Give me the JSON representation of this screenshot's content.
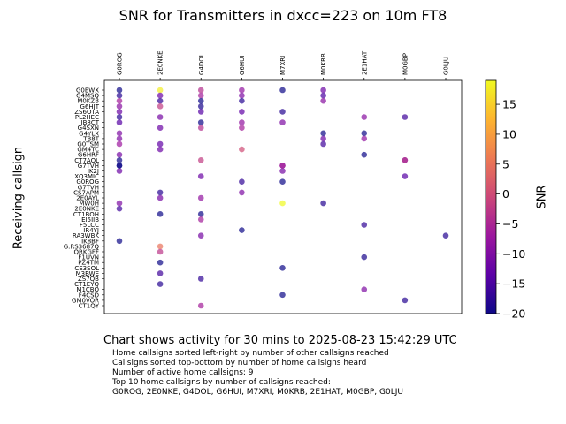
{
  "chart_data": {
    "type": "scatter",
    "title": "SNR for Transmitters in dxcc=223 on 10m FT8",
    "ylabel": "Receiving callsign",
    "colorbar_label": "SNR",
    "colorbar_ticks": [
      15,
      10,
      5,
      0,
      -5,
      -10,
      -15,
      -20
    ],
    "colorbar_range": [
      -20,
      19
    ],
    "x_categories": [
      "G0ROG",
      "2E0NKE",
      "G4DOL",
      "G6HUI",
      "M7XRI",
      "M0KRB",
      "2E1HAT",
      "M0GBP",
      "G0LJU"
    ],
    "y_categories": [
      "G0EWX",
      "G4MSQ",
      "M0KZB",
      "G6HJT",
      "ZS6OTA",
      "PL2HEC",
      "IB8CT",
      "G4SXN",
      "G4YLX",
      "TB8T",
      "G0TSM",
      "GM4TC",
      "G6HRF",
      "CT7AOL",
      "G7TVH",
      "IK2J",
      "XQ3MIC",
      "G0ROG",
      "G7TVH",
      "CS7APM",
      "2E0AYL",
      "MW0H",
      "2E0NKE",
      "CT1BOH",
      "EI5IIB",
      "F5LCC",
      "IR4YJ",
      "RA3WBK",
      "IK8BF",
      "G.RS3687Q",
      "QRKGFF",
      "F1UVN",
      "PZ4TM",
      "CE3SOL",
      "M3BWE",
      "ZS7QB",
      "CT1EYQ",
      "M1CBO",
      "F4CSD",
      "GM0VOR",
      "CT1QY"
    ],
    "points": [
      {
        "x": "G0ROG",
        "y": "G0EWX",
        "snr": -20
      },
      {
        "x": "2E0NKE",
        "y": "G0EWX",
        "snr": 18
      },
      {
        "x": "G4DOL",
        "y": "G0EWX",
        "snr": -4
      },
      {
        "x": "G6HUI",
        "y": "G0EWX",
        "snr": -8
      },
      {
        "x": "M7XRI",
        "y": "G0EWX",
        "snr": -20
      },
      {
        "x": "M0KRB",
        "y": "G0EWX",
        "snr": -12
      },
      {
        "x": "G0ROG",
        "y": "G4MSQ",
        "snr": -18
      },
      {
        "x": "2E0NKE",
        "y": "G4MSQ",
        "snr": -12
      },
      {
        "x": "G4DOL",
        "y": "G4MSQ",
        "snr": -6
      },
      {
        "x": "G6HUI",
        "y": "G4MSQ",
        "snr": -10
      },
      {
        "x": "M0KRB",
        "y": "G4MSQ",
        "snr": -15
      },
      {
        "x": "G0ROG",
        "y": "M0KZB",
        "snr": -6
      },
      {
        "x": "2E0NKE",
        "y": "M0KZB",
        "snr": -17
      },
      {
        "x": "G4DOL",
        "y": "M0KZB",
        "snr": -20
      },
      {
        "x": "G6HUI",
        "y": "M0KZB",
        "snr": -18
      },
      {
        "x": "M0KRB",
        "y": "M0KZB",
        "snr": -9
      },
      {
        "x": "G0ROG",
        "y": "G6HJT",
        "snr": -9
      },
      {
        "x": "2E0NKE",
        "y": "G6HJT",
        "snr": -2
      },
      {
        "x": "G4DOL",
        "y": "G6HJT",
        "snr": -19
      },
      {
        "x": "G0ROG",
        "y": "ZS6OTA",
        "snr": -12
      },
      {
        "x": "G4DOL",
        "y": "ZS6OTA",
        "snr": -14
      },
      {
        "x": "G6HUI",
        "y": "ZS6OTA",
        "snr": -13
      },
      {
        "x": "M7XRI",
        "y": "ZS6OTA",
        "snr": -18
      },
      {
        "x": "G0ROG",
        "y": "PL2HEC",
        "snr": -18
      },
      {
        "x": "2E0NKE",
        "y": "PL2HEC",
        "snr": -11
      },
      {
        "x": "2E1HAT",
        "y": "PL2HEC",
        "snr": -9
      },
      {
        "x": "M0GBP",
        "y": "PL2HEC",
        "snr": -16
      },
      {
        "x": "G0ROG",
        "y": "IB8CT",
        "snr": -14
      },
      {
        "x": "G4DOL",
        "y": "IB8CT",
        "snr": -20
      },
      {
        "x": "G6HUI",
        "y": "IB8CT",
        "snr": -8
      },
      {
        "x": "M7XRI",
        "y": "IB8CT",
        "snr": -10
      },
      {
        "x": "2E0NKE",
        "y": "G4SXN",
        "snr": -12
      },
      {
        "x": "G4DOL",
        "y": "G4SXN",
        "snr": -4
      },
      {
        "x": "G6HUI",
        "y": "G4SXN",
        "snr": -6
      },
      {
        "x": "G0ROG",
        "y": "G4YLX",
        "snr": -10
      },
      {
        "x": "M0KRB",
        "y": "G4YLX",
        "snr": -20
      },
      {
        "x": "2E1HAT",
        "y": "G4YLX",
        "snr": -20
      },
      {
        "x": "G0ROG",
        "y": "TB8T",
        "snr": -10
      },
      {
        "x": "M0KRB",
        "y": "TB8T",
        "snr": -12
      },
      {
        "x": "2E1HAT",
        "y": "TB8T",
        "snr": -8
      },
      {
        "x": "G0ROG",
        "y": "G0TSM",
        "snr": -7
      },
      {
        "x": "2E0NKE",
        "y": "G0TSM",
        "snr": -13
      },
      {
        "x": "M0KRB",
        "y": "G0TSM",
        "snr": -16
      },
      {
        "x": "2E0NKE",
        "y": "GM4TC",
        "snr": -12
      },
      {
        "x": "G6HUI",
        "y": "GM4TC",
        "snr": 0
      },
      {
        "x": "G0ROG",
        "y": "G6HRF",
        "snr": -11
      },
      {
        "x": "2E1HAT",
        "y": "G6HRF",
        "snr": -20
      },
      {
        "x": "G0ROG",
        "y": "CT7AOL",
        "snr": -20
      },
      {
        "x": "G4DOL",
        "y": "CT7AOL",
        "snr": -2
      },
      {
        "x": "M0GBP",
        "y": "CT7AOL",
        "snr": -9
      },
      {
        "x": "M0GBP",
        "y": "CT7AOL",
        "snr": -4
      },
      {
        "x": "G0ROG",
        "y": "G7TVH",
        "snr": -20
      },
      {
        "x": "M7XRI",
        "y": "G7TVH",
        "snr": -8
      },
      {
        "x": "G0ROG",
        "y": "IK2J",
        "snr": -12
      },
      {
        "x": "M7XRI",
        "y": "IK2J",
        "snr": -11
      },
      {
        "x": "G4DOL",
        "y": "XQ3MIC",
        "snr": -12
      },
      {
        "x": "M0GBP",
        "y": "XQ3MIC",
        "snr": -14
      },
      {
        "x": "G6HUI",
        "y": "G0ROG",
        "snr": -17
      },
      {
        "x": "M7XRI",
        "y": "G0ROG",
        "snr": -20
      },
      {
        "x": "G0ROG",
        "y": "G7TVH",
        "snr": -20
      },
      {
        "x": "M7XRI",
        "y": "G7TVH",
        "snr": -6
      },
      {
        "x": "2E0NKE",
        "y": "CS7APM",
        "snr": -18
      },
      {
        "x": "G6HUI",
        "y": "CS7APM",
        "snr": -10
      },
      {
        "x": "2E0NKE",
        "y": "2E0AYL",
        "snr": -11
      },
      {
        "x": "G4DOL",
        "y": "2E0AYL",
        "snr": -8
      },
      {
        "x": "G0ROG",
        "y": "MW0H",
        "snr": -10
      },
      {
        "x": "M7XRI",
        "y": "MW0H",
        "snr": 19
      },
      {
        "x": "M0KRB",
        "y": "MW0H",
        "snr": -18
      },
      {
        "x": "G0ROG",
        "y": "2E0NKE",
        "snr": -16
      },
      {
        "x": "G4DOL",
        "y": "CT1BOH",
        "snr": -20
      },
      {
        "x": "2E0NKE",
        "y": "CT1BOH",
        "snr": -20
      },
      {
        "x": "G4DOL",
        "y": "EI5IIB",
        "snr": -6
      },
      {
        "x": "2E1HAT",
        "y": "F5LCC",
        "snr": -17
      },
      {
        "x": "G6HUI",
        "y": "IR4YJ",
        "snr": -20
      },
      {
        "x": "G4DOL",
        "y": "RA3WBK",
        "snr": -11
      },
      {
        "x": "G0LJU",
        "y": "RA3WBK",
        "snr": -18
      },
      {
        "x": "G0ROG",
        "y": "IK8BF",
        "snr": -20
      },
      {
        "x": "2E0NKE",
        "y": "G.RS3687Q",
        "snr": 5
      },
      {
        "x": "2E0NKE",
        "y": "QRKGFF",
        "snr": -3
      },
      {
        "x": "2E1HAT",
        "y": "F1UVN",
        "snr": -19
      },
      {
        "x": "2E0NKE",
        "y": "PZ4TM",
        "snr": -20
      },
      {
        "x": "M7XRI",
        "y": "CE3SOL",
        "snr": -20
      },
      {
        "x": "2E0NKE",
        "y": "M3BWE",
        "snr": -16
      },
      {
        "x": "G4DOL",
        "y": "ZS7QB",
        "snr": -17
      },
      {
        "x": "2E0NKE",
        "y": "CT1EYQ",
        "snr": -18
      },
      {
        "x": "2E1HAT",
        "y": "M1CBO",
        "snr": -10
      },
      {
        "x": "M7XRI",
        "y": "F4CSD",
        "snr": -20
      },
      {
        "x": "M0GBP",
        "y": "GM0VOR",
        "snr": -18
      },
      {
        "x": "G4DOL",
        "y": "CT1QY",
        "snr": -6
      }
    ]
  },
  "caption": {
    "subtitle": "Chart shows activity for 30 mins to 2025-08-23 15:42:29 UTC",
    "lines": [
      "Home callsigns sorted left-right by number of other callsigns reached",
      "Callsigns sorted top-bottom by number of home callsigns heard",
      "Number of active home callsigns: 9",
      "Top 10 home callsigns by number of callsigns reached:",
      "G0ROG, 2E0NKE, G4DOL, G6HUI, M7XRI, M0KRB, 2E1HAT, M0GBP, G0LJU"
    ]
  },
  "colors": {
    "colormap": [
      "#0d0887",
      "#5c01a6",
      "#9c179e",
      "#cc4778",
      "#ed7953",
      "#fdb42f",
      "#f0f921"
    ]
  }
}
